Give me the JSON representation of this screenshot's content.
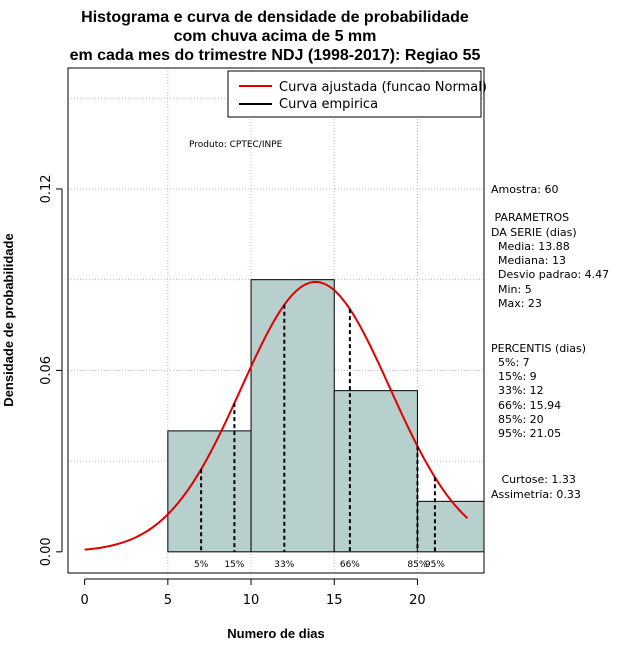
{
  "chart_data": {
    "type": "bar",
    "title_lines": [
      "Histograma e curva de densidade de probabilidade",
      "com chuva acima de 5 mm",
      "em cada mes do trimestre NDJ (1998-2017): Regiao 55"
    ],
    "xlabel": "Numero de dias",
    "ylabel": "Densidade de probabilidade",
    "xlim": [
      -1,
      24
    ],
    "ylim": [
      -0.007,
      0.16
    ],
    "xticks": [
      0,
      5,
      10,
      15,
      20
    ],
    "yticks": [
      0.0,
      0.06,
      0.12
    ],
    "ytick_labels": [
      "0.00",
      "0.06",
      "0.12"
    ],
    "grid": true,
    "bins": [
      {
        "start": 5,
        "end": 10,
        "density": 0.04
      },
      {
        "start": 10,
        "end": 15,
        "density": 0.09
      },
      {
        "start": 15,
        "end": 20,
        "density": 0.0533
      },
      {
        "start": 20,
        "end": 24,
        "density": 0.0167
      }
    ],
    "normal_curve": {
      "mean": 13.88,
      "sd": 4.47,
      "x_from": 0,
      "x_to": 23,
      "color": "#e00000"
    },
    "percentile_lines": [
      {
        "label": "5%",
        "x": 7
      },
      {
        "label": "15%",
        "x": 9
      },
      {
        "label": "33%",
        "x": 12
      },
      {
        "label": "66%",
        "x": 15.94
      },
      {
        "label": "85%",
        "x": 20
      },
      {
        "label": "95%",
        "x": 21.05
      }
    ],
    "legend": {
      "placement": "top-right",
      "entries": [
        {
          "label": "Curva ajustada (funcao Normal)",
          "color": "#e00000"
        },
        {
          "label": "Curva empirica",
          "color": "#000000"
        }
      ]
    },
    "annotation": "Produto: CPTEC/INPE",
    "bar_color": "#b7cfcd"
  },
  "stats_panel": {
    "lines": [
      "Amostra: 60",
      " PARAMETROS",
      "DA SERIE (dias)",
      "  Media: 13.88",
      "  Mediana: 13",
      "  Desvio padrao: 4.47",
      "  Min: 5",
      "  Max: 23",
      "PERCENTIS (dias)",
      "  5%: 7",
      "  15%: 9",
      "  33%: 12",
      "  66%: 15.94",
      "  85%: 20",
      "  95%: 21.05",
      "   Curtose: 1.33",
      "Assimetria: 0.33"
    ]
  }
}
